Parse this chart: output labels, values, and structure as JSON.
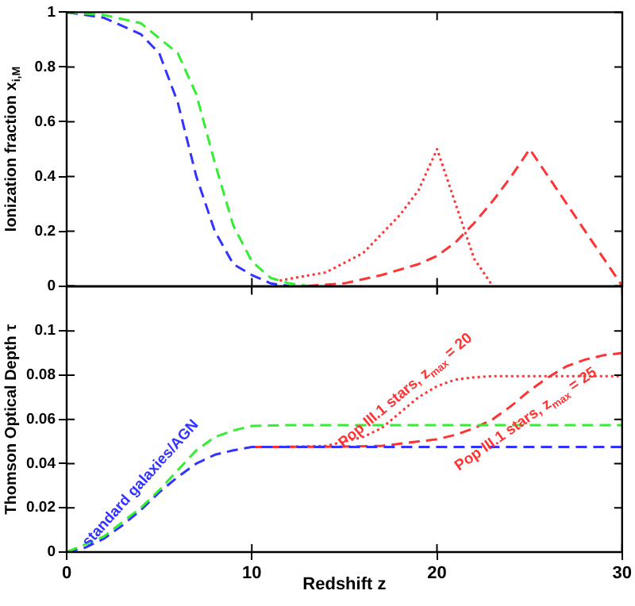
{
  "chart_data": [
    {
      "type": "line",
      "ylabel": "Ionization fraction x$_{i,M}$",
      "xlim": [
        0,
        30
      ],
      "xticks": [
        0,
        10,
        20,
        30
      ],
      "ylim": [
        0,
        1
      ],
      "yticks": [
        0,
        0.2,
        0.4,
        0.6,
        0.8,
        1
      ],
      "tick_labels": "y",
      "grid": false,
      "legend": false,
      "marker": "none",
      "series": [
        {
          "color": "#33ee33",
          "line_style": "dashed",
          "x": [
            0,
            2,
            4,
            6,
            7,
            8,
            9,
            10,
            11,
            12,
            13
          ],
          "values": [
            1,
            0.99,
            0.96,
            0.85,
            0.7,
            0.45,
            0.22,
            0.09,
            0.03,
            0.01,
            0
          ]
        },
        {
          "color": "#3333ff",
          "line_style": "dashed",
          "x": [
            0,
            2,
            4,
            5,
            6,
            7,
            8,
            9,
            10,
            11,
            12
          ],
          "values": [
            1,
            0.98,
            0.92,
            0.85,
            0.67,
            0.4,
            0.2,
            0.08,
            0.04,
            0.01,
            0
          ]
        },
        {
          "color": "#ff3333",
          "line_style": "dotted",
          "x": [
            11.5,
            14,
            16,
            18,
            19,
            20,
            21,
            22,
            23
          ],
          "values": [
            0.02,
            0.05,
            0.12,
            0.26,
            0.35,
            0.5,
            0.3,
            0.1,
            0
          ]
        },
        {
          "color": "#ff3333",
          "line_style": "dashed",
          "x": [
            13,
            15,
            17,
            19,
            20,
            21,
            22,
            23,
            24,
            25,
            26,
            27,
            28,
            29,
            30
          ],
          "values": [
            0,
            0.01,
            0.04,
            0.08,
            0.11,
            0.16,
            0.23,
            0.31,
            0.4,
            0.5,
            0.4,
            0.3,
            0.2,
            0.1,
            0
          ]
        }
      ]
    },
    {
      "type": "line",
      "xlabel": "Redshift z",
      "ylabel": "Thomson Optical Depth τ",
      "xlim": [
        0,
        30
      ],
      "xticks": [
        0,
        10,
        20,
        30
      ],
      "ylim": [
        0,
        0.12
      ],
      "yticks": [
        0,
        0.02,
        0.04,
        0.06,
        0.08,
        0.1
      ],
      "grid": false,
      "legend": false,
      "marker": "none",
      "series": [
        {
          "color": "#33ee33",
          "line_style": "dashed",
          "x": [
            0,
            2,
            4,
            5,
            6,
            7,
            8,
            9,
            10,
            12,
            30
          ],
          "values": [
            0,
            0.007,
            0.02,
            0.028,
            0.037,
            0.046,
            0.052,
            0.055,
            0.057,
            0.0574,
            0.0574
          ]
        },
        {
          "name": "standard galaxies/AGN",
          "color": "#3333ff",
          "line_style": "dashed",
          "x": [
            0,
            1,
            2,
            3,
            4,
            5,
            6,
            7,
            8,
            9,
            10,
            30
          ],
          "values": [
            0,
            0.002,
            0.006,
            0.012,
            0.019,
            0.027,
            0.034,
            0.04,
            0.044,
            0.046,
            0.0475,
            0.0475
          ]
        },
        {
          "name": "Pop III.1 stars, z$_{max}$ = 20",
          "color": "#ff3333",
          "line_style": "dotted",
          "x": [
            10,
            12,
            14,
            16,
            17,
            18,
            19,
            20,
            21,
            22,
            23,
            30
          ],
          "values": [
            0.0475,
            0.0476,
            0.048,
            0.052,
            0.056,
            0.063,
            0.07,
            0.075,
            0.078,
            0.079,
            0.0795,
            0.0795
          ]
        },
        {
          "name": "Pop III.1 stars, z$_{max}$ = 25",
          "color": "#ff3333",
          "line_style": "dashed",
          "x": [
            10,
            15,
            17,
            19,
            20,
            21,
            22,
            23,
            24,
            25,
            26,
            27,
            28,
            29,
            30
          ],
          "values": [
            0.0475,
            0.0477,
            0.048,
            0.05,
            0.051,
            0.053,
            0.056,
            0.06,
            0.066,
            0.073,
            0.079,
            0.084,
            0.087,
            0.089,
            0.09
          ]
        }
      ]
    }
  ]
}
